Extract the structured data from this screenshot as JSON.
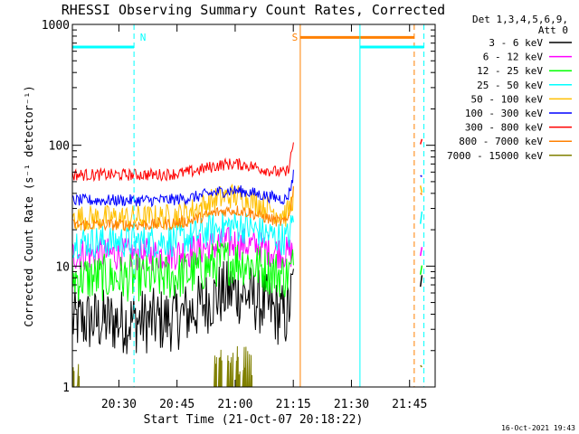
{
  "chart_data": {
    "type": "line",
    "title": "RHESSI Observing Summary Count Rates, Corrected",
    "xlabel": "Start Time (21-Oct-07 20:18:22)",
    "ylabel": "Corrected Count Rate (s⁻¹ detector⁻¹)",
    "yscale": "log",
    "ylim": [
      1,
      1000
    ],
    "xlim_minutes": [
      -0.4,
      93.2
    ],
    "x_ticks": [
      {
        "label": "20:30",
        "minute": 11.6
      },
      {
        "label": "20:45",
        "minute": 26.6
      },
      {
        "label": "21:00",
        "minute": 41.6
      },
      {
        "label": "21:15",
        "minute": 56.6
      },
      {
        "label": "21:30",
        "minute": 71.6
      },
      {
        "label": "21:45",
        "minute": 86.6
      }
    ],
    "y_ticks": [
      {
        "label": "1",
        "value": 1
      },
      {
        "label": "10",
        "value": 10
      },
      {
        "label": "100",
        "value": 100
      },
      {
        "label": "1000",
        "value": 1000
      }
    ],
    "legend_header": [
      "Det 1,3,4,5,6,9,",
      "Att 0"
    ],
    "legend_position": "right",
    "series": [
      {
        "name": "3 - 6 keV",
        "color": "#000000",
        "base": 3.5,
        "bump": 2.6,
        "noise": 0.55,
        "post": 7.5
      },
      {
        "name": "6 - 12 keV",
        "color": "#ff00ff",
        "base": 12.5,
        "bump": 3.0,
        "noise": 0.28,
        "post": 13
      },
      {
        "name": "12 - 25 keV",
        "color": "#00ff00",
        "base": 8.0,
        "bump": 3.0,
        "noise": 0.4,
        "post": 10
      },
      {
        "name": "25 - 50 keV",
        "color": "#00ffff",
        "base": 16.0,
        "bump": 5.5,
        "noise": 0.28,
        "post": 25
      },
      {
        "name": "50 - 100 keV",
        "color": "#ffbf00",
        "base": 25.0,
        "bump": 13.0,
        "noise": 0.22,
        "post": 40
      },
      {
        "name": "100 - 300 keV",
        "color": "#0000ff",
        "base": 35.0,
        "bump": 7.0,
        "noise": 0.1,
        "post": 60
      },
      {
        "name": "300 - 800 keV",
        "color": "#ff0000",
        "base": 57.0,
        "bump": 13.0,
        "noise": 0.1,
        "post": 110
      },
      {
        "name": "800 - 7000 keV",
        "color": "#ff8000",
        "base": 22.0,
        "bump": 7.0,
        "noise": 0.1,
        "post": 45
      },
      {
        "name": "7000 - 15000 keV",
        "color": "#808000",
        "base": 1.0,
        "bump": 0,
        "noise": 0,
        "post": 1.6
      }
    ],
    "data_end_minute": 56.8,
    "data_resume_minute": 89.4,
    "flags": [
      {
        "label": "N",
        "color": "#00ffff",
        "start_minute": -0.4,
        "end_minute": 15.5,
        "level": 650
      },
      {
        "label": "S",
        "color": "#ff8000",
        "start_minute": 58.4,
        "end_minute": 87.8,
        "level": 780
      },
      {
        "label": "",
        "color": "#00ffff",
        "start_minute": 73.8,
        "end_minute": 90.3,
        "level": 650
      }
    ],
    "timestamp": "16-Oct-2021 19:43"
  }
}
